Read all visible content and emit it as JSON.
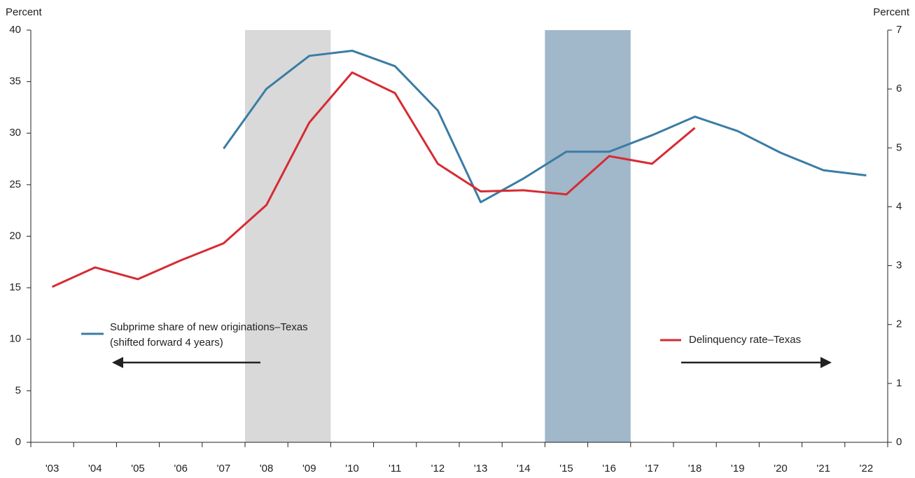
{
  "chart_data": {
    "type": "line",
    "y_label": "Percent",
    "y2_label": "Percent",
    "categories": [
      "'03",
      "'04",
      "'05",
      "'06",
      "'07",
      "'08",
      "'09",
      "'10",
      "'11",
      "'12",
      "'13",
      "'14",
      "'15",
      "'16",
      "'17",
      "'18",
      "'19",
      "'20",
      "'21",
      "'22"
    ],
    "series": [
      {
        "name": "Subprime share of new originations–Texas",
        "note": "(shifted forward 4 years)",
        "color": "#3a7ca5",
        "axis": "y",
        "values": [
          null,
          null,
          null,
          null,
          28.5,
          34.3,
          37.5,
          38.0,
          36.5,
          32.2,
          23.3,
          25.6,
          28.2,
          28.2,
          29.8,
          31.6,
          30.2,
          28.1,
          26.4,
          25.9
        ]
      },
      {
        "name": "Delinquency rate–Texas",
        "color": "#d62b32",
        "axis": "y2",
        "values": [
          2.64,
          2.97,
          2.77,
          3.09,
          3.38,
          4.03,
          5.43,
          6.28,
          5.93,
          4.73,
          4.26,
          4.28,
          4.21,
          4.86,
          4.73,
          5.34,
          null,
          null,
          null,
          null
        ]
      }
    ],
    "bands": [
      {
        "start": "'08",
        "end": "'09",
        "color": "#d9d9d9"
      },
      {
        "start": "'15",
        "end": "'16",
        "color": "#a1b7ca"
      }
    ],
    "ylim": [
      0,
      40
    ],
    "yticks": [
      0,
      5,
      10,
      15,
      20,
      25,
      30,
      35,
      40
    ],
    "y2lim": [
      0,
      7
    ],
    "y2ticks": [
      0,
      1,
      2,
      3,
      4,
      5,
      6,
      7
    ]
  }
}
